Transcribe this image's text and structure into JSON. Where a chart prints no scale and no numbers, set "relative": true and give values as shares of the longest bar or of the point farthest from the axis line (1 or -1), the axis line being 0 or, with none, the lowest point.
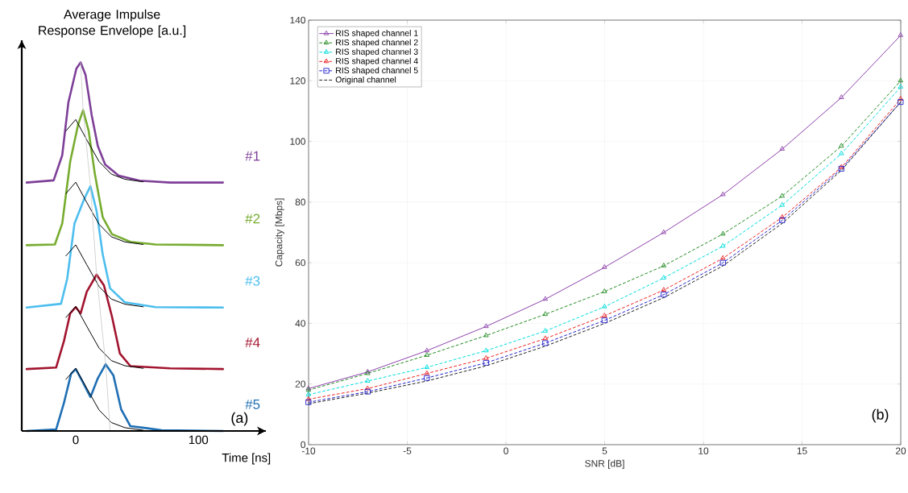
{
  "chart_data": [
    {
      "type": "line",
      "relative": true,
      "ylabel": "Average Impulse Response Envelope [a.u.]",
      "xlabel": "Time [ns]",
      "xlim": [
        -44,
        155
      ],
      "xticks": [
        0,
        100
      ],
      "tick_labels": "x",
      "legend": false,
      "annotations": [
        "(a)"
      ],
      "series": [
        {
          "name": "#1",
          "color": "#7e3f98",
          "x": [
            -40,
            -18,
            -11,
            -6,
            0.5,
            4,
            8,
            13,
            18,
            24,
            35,
            52,
            77,
            120
          ],
          "values": [
            0.674,
            0.68,
            0.748,
            0.891,
            0.983,
            1.0,
            0.966,
            0.857,
            0.773,
            0.723,
            0.693,
            0.679,
            0.674,
            0.674
          ]
        },
        {
          "name": "#2",
          "color": "#77ac30",
          "x": [
            -40,
            -17,
            -11,
            -4.5,
            2,
            6,
            10.5,
            15.6,
            22,
            29.5,
            44.6,
            65,
            120
          ],
          "values": [
            0.504,
            0.506,
            0.563,
            0.731,
            0.832,
            0.87,
            0.815,
            0.697,
            0.58,
            0.534,
            0.513,
            0.506,
            0.504
          ]
        },
        {
          "name": "#3",
          "color": "#4dbeee",
          "x": [
            -40,
            -12,
            -7,
            -1,
            7,
            12,
            17,
            22,
            28,
            40,
            65,
            120
          ],
          "values": [
            0.335,
            0.345,
            0.412,
            0.563,
            0.63,
            0.664,
            0.597,
            0.479,
            0.387,
            0.349,
            0.336,
            0.335
          ]
        },
        {
          "name": "#4",
          "color": "#a2142f",
          "x": [
            -40,
            -16,
            -9.6,
            -4.5,
            0,
            4,
            9,
            17,
            23,
            29.5,
            36,
            44.6,
            77,
            120
          ],
          "values": [
            0.168,
            0.172,
            0.244,
            0.319,
            0.336,
            0.319,
            0.378,
            0.424,
            0.395,
            0.311,
            0.21,
            0.176,
            0.17,
            0.168
          ]
        },
        {
          "name": "#5",
          "color": "#1f6fb4",
          "x": [
            -40,
            -16,
            -9.6,
            -3.8,
            0,
            5.5,
            12,
            18,
            24.4,
            30.7,
            37,
            44.6,
            57,
            70,
            120
          ],
          "values": [
            0,
            0.004,
            0.076,
            0.155,
            0.168,
            0.134,
            0.092,
            0.143,
            0.181,
            0.151,
            0.059,
            0.013,
            0.008,
            0.002,
            0
          ]
        },
        {
          "color": "#000000",
          "x": [
            -8,
            0,
            9,
            19,
            29,
            40,
            55
          ],
          "values": [
            0.814,
            0.845,
            0.79,
            0.731,
            0.697,
            0.683,
            0.676
          ]
        },
        {
          "color": "#000000",
          "x": [
            -8,
            0,
            9,
            19,
            29,
            40,
            55
          ],
          "values": [
            0.644,
            0.675,
            0.62,
            0.561,
            0.527,
            0.513,
            0.506
          ]
        },
        {
          "color": "#000000",
          "x": [
            -8,
            0,
            9,
            19,
            29,
            40,
            55
          ],
          "values": [
            0.475,
            0.505,
            0.451,
            0.392,
            0.358,
            0.344,
            0.337
          ]
        },
        {
          "color": "#000000",
          "x": [
            -8,
            0,
            9,
            19,
            29,
            40,
            55
          ],
          "values": [
            0.308,
            0.338,
            0.284,
            0.225,
            0.191,
            0.177,
            0.17
          ]
        },
        {
          "color": "#000000",
          "x": [
            -8,
            0,
            9,
            19,
            29,
            40,
            55
          ],
          "values": [
            0.14,
            0.17,
            0.116,
            0.057,
            0.023,
            0.009,
            0.002
          ]
        },
        {
          "color": "#c8c8c8",
          "x": [
            4,
            6,
            12,
            17,
            24.4,
            28
          ],
          "values": [
            1.0,
            0.87,
            0.664,
            0.424,
            0.181,
            0
          ]
        }
      ]
    },
    {
      "type": "line",
      "xlabel": "SNR [dB]",
      "ylabel": "Capacity [Mbps]",
      "xlim": [
        -10,
        20
      ],
      "ylim": [
        0,
        140
      ],
      "xticks": [
        -10,
        -5,
        0,
        5,
        10,
        15,
        20
      ],
      "yticks": [
        0,
        20,
        40,
        60,
        80,
        100,
        120,
        140
      ],
      "grid": true,
      "legend": "top left",
      "annotations": [
        "(b)"
      ],
      "x": [
        -10,
        -7,
        -4,
        -1,
        2,
        5,
        8,
        11,
        14,
        17,
        20
      ],
      "series": [
        {
          "name": "RIS shaped channel 1",
          "color": "#8e44ad",
          "marker": "triangle",
          "line_style": "solid",
          "values": [
            18.5,
            24,
            31,
            39,
            48,
            58.5,
            70,
            82.5,
            97.5,
            114.5,
            135
          ]
        },
        {
          "name": "RIS shaped channel 2",
          "color": "#228b22",
          "marker": "triangle",
          "line_style": "dashed",
          "values": [
            18,
            23.5,
            29.5,
            36,
            43,
            50.5,
            59,
            69.5,
            82,
            98.5,
            120
          ]
        },
        {
          "name": "RIS shaped channel 3",
          "color": "#00dddd",
          "marker": "triangle",
          "line_style": "dashed",
          "values": [
            16.5,
            21,
            25.5,
            31,
            37.5,
            45.5,
            55,
            65.5,
            79,
            96,
            118
          ]
        },
        {
          "name": "RIS shaped channel 4",
          "color": "#ee2222",
          "marker": "triangle",
          "line_style": "dashed",
          "values": [
            15,
            18.5,
            23.5,
            28.5,
            35,
            42.5,
            51,
            61.5,
            75,
            91.5,
            114
          ]
        },
        {
          "name": "RIS shaped channel 5",
          "color": "#2222cc",
          "marker": "square",
          "line_style": "dashed",
          "values": [
            14,
            17.5,
            22,
            27,
            33.5,
            41,
            49.5,
            60,
            74,
            91,
            113
          ]
        },
        {
          "name": "Original channel",
          "color": "#222222",
          "marker": "none",
          "line_style": "dashed",
          "values": [
            13.5,
            17,
            21,
            26,
            32.5,
            40,
            48.5,
            59,
            73,
            90.5,
            113
          ]
        }
      ]
    }
  ]
}
